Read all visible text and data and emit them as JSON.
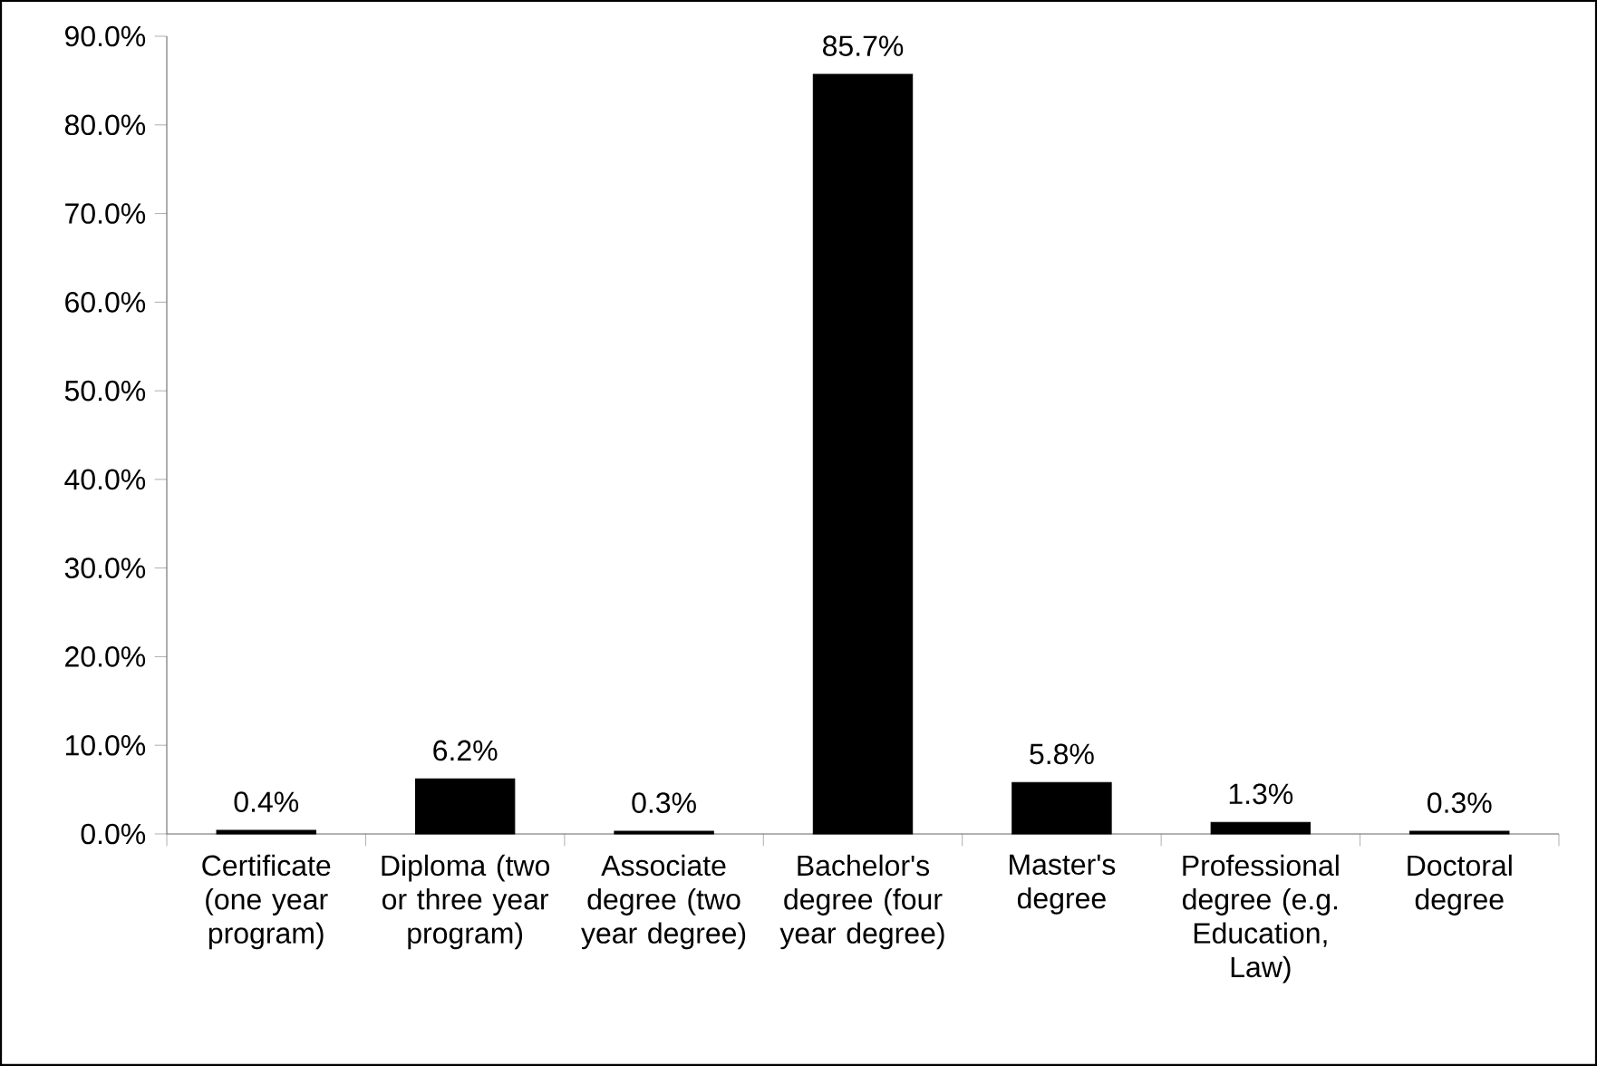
{
  "chart_data": {
    "type": "bar",
    "categories": [
      "Certificate (one year program)",
      "Diploma (two or three year program)",
      "Associate degree (two year degree)",
      "Bachelor's degree (four year degree)",
      "Master's degree",
      "Professional degree (e.g. Education, Law)",
      "Doctoral degree"
    ],
    "values": [
      0.4,
      6.2,
      0.3,
      85.7,
      5.8,
      1.3,
      0.3
    ],
    "value_labels": [
      "0.4%",
      "6.2%",
      "0.3%",
      "85.7%",
      "5.8%",
      "1.3%",
      "0.3%"
    ],
    "color": "#000000",
    "ylim": [
      0,
      90
    ],
    "yticks": [
      {
        "value": 0,
        "label": "0.0%"
      },
      {
        "value": 10,
        "label": "10.0%"
      },
      {
        "value": 20,
        "label": "20.0%"
      },
      {
        "value": 30,
        "label": "30.0%"
      },
      {
        "value": 40,
        "label": "40.0%"
      },
      {
        "value": 50,
        "label": "50.0%"
      },
      {
        "value": 60,
        "label": "60.0%"
      },
      {
        "value": 70,
        "label": "70.0%"
      },
      {
        "value": 80,
        "label": "80.0%"
      },
      {
        "value": 90,
        "label": "90.0%"
      }
    ],
    "grid": false
  }
}
